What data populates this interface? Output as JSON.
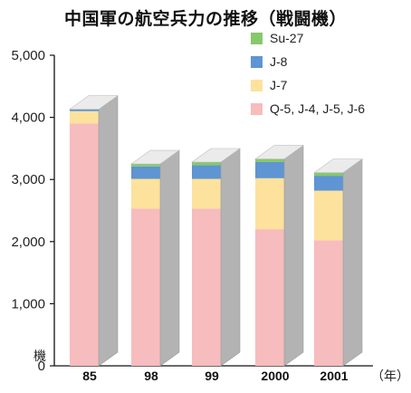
{
  "chart_data": {
    "type": "bar",
    "stacked": true,
    "three_d": true,
    "title": "中国軍の航空兵力の推移（戦闘機）",
    "y_unit": "機",
    "x_unit": "（年）",
    "categories": [
      "85",
      "98",
      "99",
      "2000",
      "2001"
    ],
    "ylim": [
      0,
      5000
    ],
    "yticks": [
      "0",
      "1,000",
      "2,000",
      "3,000",
      "4,000",
      "5,000"
    ],
    "ytick_values": [
      0,
      1000,
      2000,
      3000,
      4000,
      5000
    ],
    "legend_position": "top-right",
    "series": [
      {
        "name": "Q-5, J-4, J-5, J-6",
        "color": "#f7bcbd",
        "values": [
          3900,
          2530,
          2530,
          2200,
          2020
        ]
      },
      {
        "name": "J-7",
        "color": "#fde29d",
        "values": [
          200,
          480,
          480,
          820,
          800
        ]
      },
      {
        "name": "J-8",
        "color": "#5e95d2",
        "values": [
          30,
          200,
          220,
          260,
          240
        ]
      },
      {
        "name": "Su-27",
        "color": "#86c96a",
        "values": [
          0,
          40,
          50,
          50,
          50
        ]
      }
    ]
  }
}
